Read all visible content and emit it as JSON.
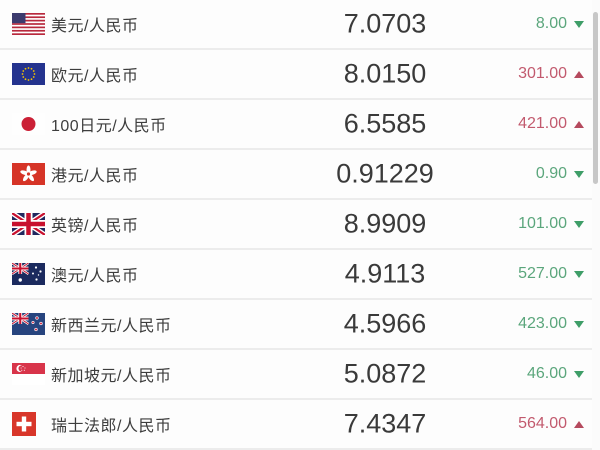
{
  "list": {
    "rows": [
      {
        "flag_icon": "us-flag-icon",
        "pair": "美元/人民币",
        "rate": "7.0703",
        "change": "8.00",
        "direction": "down"
      },
      {
        "flag_icon": "eu-flag-icon",
        "pair": "欧元/人民币",
        "rate": "8.0150",
        "change": "301.00",
        "direction": "up"
      },
      {
        "flag_icon": "jp-flag-icon",
        "pair": "100日元/人民币",
        "rate": "6.5585",
        "change": "421.00",
        "direction": "up"
      },
      {
        "flag_icon": "hk-flag-icon",
        "pair": "港元/人民币",
        "rate": "0.91229",
        "change": "0.90",
        "direction": "down"
      },
      {
        "flag_icon": "gb-flag-icon",
        "pair": "英镑/人民币",
        "rate": "8.9909",
        "change": "101.00",
        "direction": "down"
      },
      {
        "flag_icon": "au-flag-icon",
        "pair": "澳元/人民币",
        "rate": "4.9113",
        "change": "527.00",
        "direction": "down"
      },
      {
        "flag_icon": "nz-flag-icon",
        "pair": "新西兰元/人民币",
        "rate": "4.5966",
        "change": "423.00",
        "direction": "down"
      },
      {
        "flag_icon": "sg-flag-icon",
        "pair": "新加坡元/人民币",
        "rate": "5.0872",
        "change": "46.00",
        "direction": "down"
      },
      {
        "flag_icon": "ch-flag-icon",
        "pair": "瑞士法郎/人民币",
        "rate": "7.4347",
        "change": "564.00",
        "direction": "up"
      }
    ],
    "colors": {
      "up_text": "#c25a6e",
      "down_text": "#5ba67c",
      "up_arrow": "#b54a5e",
      "down_arrow": "#3f9e68",
      "divider": "#ececec",
      "rate_text": "#3a3a3a",
      "label_text": "#3d3d3d"
    }
  }
}
